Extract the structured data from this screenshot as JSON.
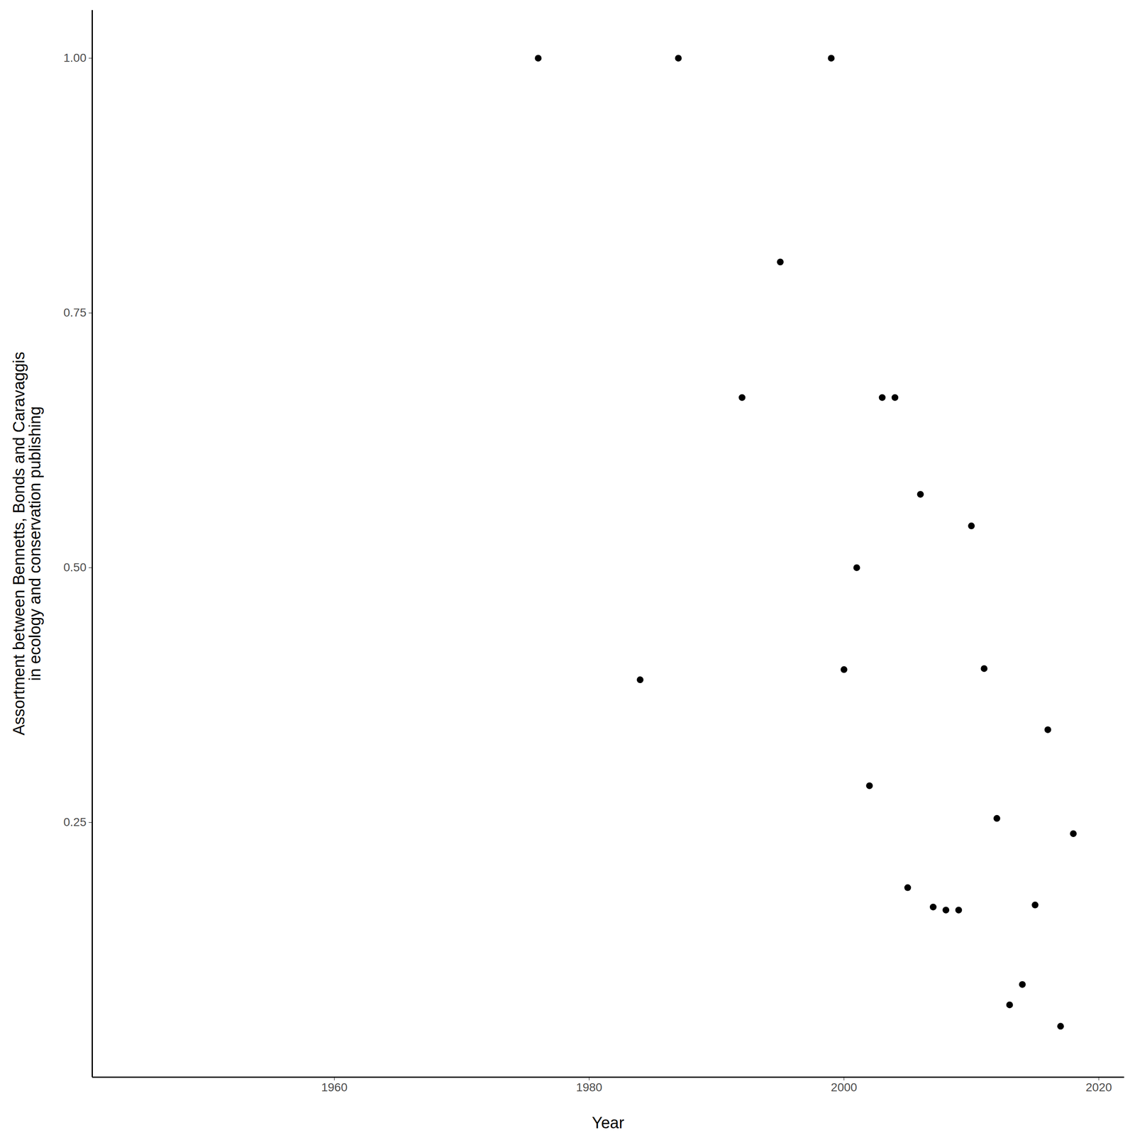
{
  "chart_data": {
    "type": "scatter",
    "xlabel": "Year",
    "ylabel": "Assortment between Bennetts, Bonds and Caravaggis\nin ecology and conservation publishing",
    "x": [
      1976,
      1984,
      1987,
      1992,
      1995,
      1999,
      2000,
      2001,
      2002,
      2003,
      2004,
      2005,
      2006,
      2007,
      2008,
      2009,
      2010,
      2011,
      2012,
      2013,
      2014,
      2015,
      2016,
      2017,
      2018
    ],
    "values": [
      1.0,
      0.39,
      1.0,
      0.667,
      0.8,
      1.0,
      0.4,
      0.5,
      0.286,
      0.667,
      0.667,
      0.186,
      0.572,
      0.167,
      0.164,
      0.164,
      0.541,
      0.401,
      0.254,
      0.071,
      0.091,
      0.169,
      0.341,
      0.05,
      0.239
    ],
    "color": "#000000",
    "marker": "circle",
    "xlim": [
      1941,
      2022
    ],
    "ylim": [
      0.0,
      1.047
    ],
    "xticks": [
      1960,
      1980,
      2000,
      2020
    ],
    "yticks": [
      {
        "value": 0.25,
        "label": "0.25"
      },
      {
        "value": 0.5,
        "label": "0.50"
      },
      {
        "value": 0.75,
        "label": "0.75"
      },
      {
        "value": 1.0,
        "label": "1.00"
      }
    ],
    "grid": false
  }
}
